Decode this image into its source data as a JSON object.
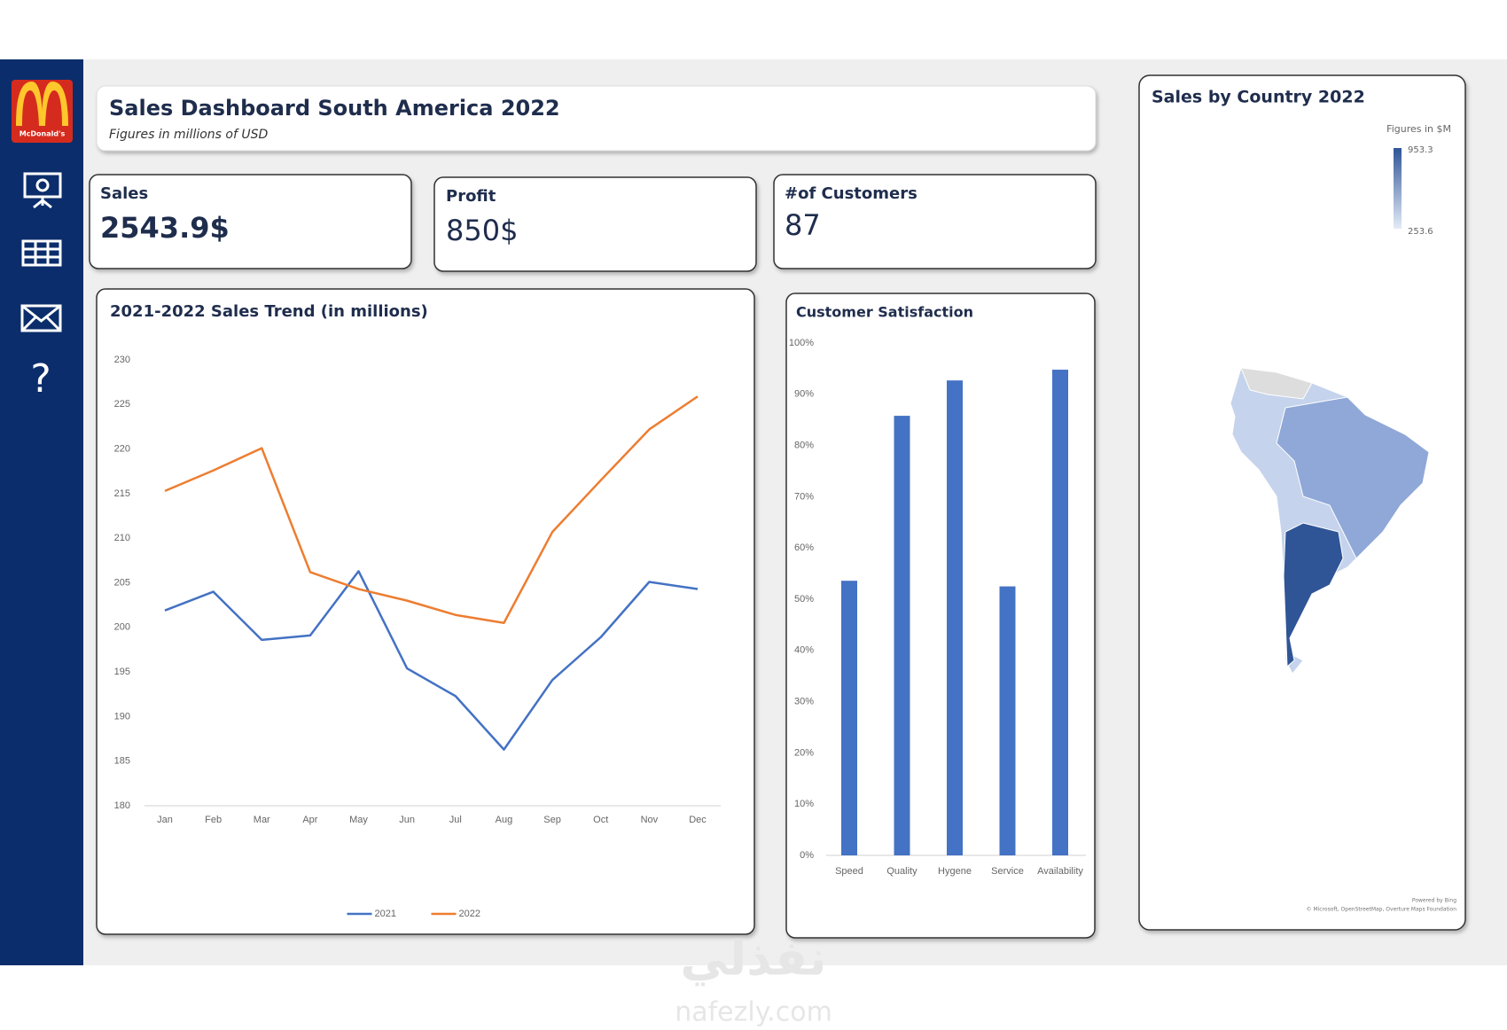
{
  "sidebar": {
    "logo_text": "McDonald's",
    "help": "?"
  },
  "header": {
    "title": "Sales Dashboard South America 2022",
    "subtitle": "Figures in millions of USD"
  },
  "kpis": [
    {
      "label": "Sales",
      "value": "2543.9$"
    },
    {
      "label": "Profit",
      "value": "850$"
    },
    {
      "label": "#of Customers",
      "value": "87"
    }
  ],
  "chart_data": [
    {
      "type": "line",
      "title": "2021-2022 Sales Trend (in millions)",
      "categories": [
        "Jan",
        "Feb",
        "Mar",
        "Apr",
        "May",
        "Jun",
        "Jul",
        "Aug",
        "Sep",
        "Oct",
        "Nov",
        "Dec"
      ],
      "series": [
        {
          "name": "2021",
          "color": "#4472c4",
          "values": [
            201.9,
            204,
            198.6,
            199.1,
            206.3,
            195.4,
            192.3,
            186.3,
            194.1,
            198.9,
            205.1,
            204.3
          ]
        },
        {
          "name": "2022",
          "color": "#ed7d31",
          "values": [
            215.3,
            217.6,
            220.1,
            206.2,
            204.3,
            203,
            201.4,
            200.5,
            210.7,
            216.5,
            222.2,
            225.9
          ]
        }
      ],
      "ylim": [
        180,
        230
      ],
      "yticks": [
        180,
        185,
        190,
        195,
        200,
        205,
        210,
        215,
        220,
        225,
        230
      ],
      "legend": "bottom"
    },
    {
      "type": "bar",
      "title": "Customer Satisfaction",
      "categories": [
        "Speed",
        "Quality",
        "Hygene",
        "Service",
        "Availability"
      ],
      "values": [
        53.6,
        85.8,
        92.7,
        52.5,
        94.8
      ],
      "color": "#4472c4",
      "ylim": [
        0,
        100
      ],
      "yticks": [
        {
          "value": 0,
          "label": "0%"
        },
        {
          "value": 10,
          "label": "10%"
        },
        {
          "value": 20,
          "label": "20%"
        },
        {
          "value": 30,
          "label": "30%"
        },
        {
          "value": 40,
          "label": "40%"
        },
        {
          "value": 50,
          "label": "50%"
        },
        {
          "value": 60,
          "label": "60%"
        },
        {
          "value": 70,
          "label": "70%"
        },
        {
          "value": 80,
          "label": "80%"
        },
        {
          "value": 90,
          "label": "90%"
        },
        {
          "value": 100,
          "label": "100%"
        }
      ]
    }
  ],
  "map": {
    "title": "Sales by Country 2022",
    "legend_title": "Figures in $M",
    "legend_max": "953.3",
    "legend_min": "253.6",
    "credit": "Powered by Bing",
    "copyright": "© Microsoft, OpenStreetMap, Overture Maps Foundation"
  },
  "watermark": {
    "arabic": "نفذلي",
    "latin": "nafezly.com"
  }
}
